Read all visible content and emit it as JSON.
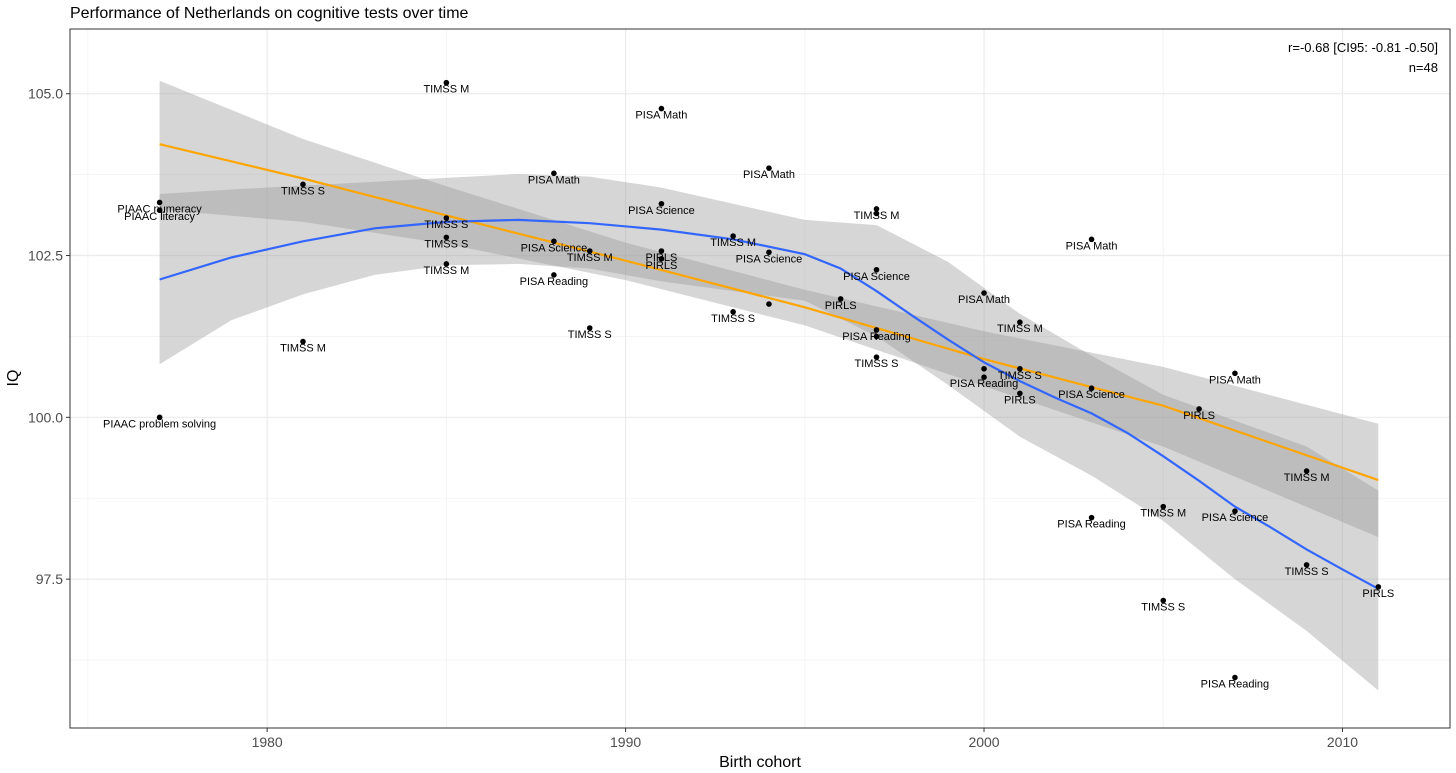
{
  "chart_data": {
    "type": "scatter",
    "title": "Performance of Netherlands on cognitive tests over time",
    "xlabel": "Birth cohort",
    "ylabel": "IQ",
    "xlim": [
      1974.5,
      2013
    ],
    "ylim": [
      95.2,
      106.0
    ],
    "x_ticks": [
      1980,
      1990,
      2000,
      2010
    ],
    "y_ticks": [
      97.5,
      100.0,
      102.5,
      105.0
    ],
    "y_tick_labels": [
      "97.5",
      "100.0",
      "102.5",
      "105.0"
    ],
    "grid": true,
    "annotations": [
      "r=-0.68 [CI95: -0.81 -0.50]",
      "n=48"
    ],
    "points": [
      {
        "x": 1977,
        "y": 103.32,
        "label": "PIAAC numeracy"
      },
      {
        "x": 1977,
        "y": 103.2,
        "label": "PIAAC literacy"
      },
      {
        "x": 1977,
        "y": 100.0,
        "label": "PIAAC problem solving"
      },
      {
        "x": 1981,
        "y": 103.6,
        "label": "TIMSS S"
      },
      {
        "x": 1981,
        "y": 101.17,
        "label": "TIMSS M"
      },
      {
        "x": 1985,
        "y": 105.17,
        "label": "TIMSS M"
      },
      {
        "x": 1985,
        "y": 103.08,
        "label": "TIMSS S"
      },
      {
        "x": 1985,
        "y": 102.78,
        "label": "TIMSS S"
      },
      {
        "x": 1985,
        "y": 102.37,
        "label": "TIMSS M"
      },
      {
        "x": 1988,
        "y": 103.77,
        "label": "PISA Math"
      },
      {
        "x": 1988,
        "y": 102.72,
        "label": "PISA Science"
      },
      {
        "x": 1988,
        "y": 102.2,
        "label": "PISA Reading"
      },
      {
        "x": 1989,
        "y": 102.57,
        "label": "TIMSS M"
      },
      {
        "x": 1989,
        "y": 101.38,
        "label": "TIMSS S"
      },
      {
        "x": 1991,
        "y": 104.77,
        "label": "PISA Math"
      },
      {
        "x": 1991,
        "y": 103.3,
        "label": "PISA Science"
      },
      {
        "x": 1991,
        "y": 102.57,
        "label": "PIRLS"
      },
      {
        "x": 1991,
        "y": 102.45,
        "label": "PIRLS"
      },
      {
        "x": 1993,
        "y": 102.8,
        "label": "TIMSS M"
      },
      {
        "x": 1993,
        "y": 101.63,
        "label": "TIMSS S"
      },
      {
        "x": 1994,
        "y": 103.85,
        "label": "PISA Math"
      },
      {
        "x": 1994,
        "y": 102.55,
        "label": "PISA Science"
      },
      {
        "x": 1994,
        "y": 101.75,
        "label": ""
      },
      {
        "x": 1996,
        "y": 101.83,
        "label": "PIRLS"
      },
      {
        "x": 1997,
        "y": 103.22,
        "label": "TIMSS M"
      },
      {
        "x": 1997,
        "y": 103.15,
        "label": ""
      },
      {
        "x": 1997,
        "y": 102.28,
        "label": "PISA Science"
      },
      {
        "x": 1997,
        "y": 101.35,
        "label": "PISA Reading"
      },
      {
        "x": 1997,
        "y": 101.25,
        "label": ""
      },
      {
        "x": 1997,
        "y": 100.93,
        "label": "TIMSS S"
      },
      {
        "x": 2000,
        "y": 101.92,
        "label": "PISA Math"
      },
      {
        "x": 2000,
        "y": 100.75,
        "label": ""
      },
      {
        "x": 2000,
        "y": 100.62,
        "label": "PISA Reading"
      },
      {
        "x": 2001,
        "y": 101.47,
        "label": "TIMSS M"
      },
      {
        "x": 2001,
        "y": 100.75,
        "label": "TIMSS S"
      },
      {
        "x": 2001,
        "y": 100.37,
        "label": "PIRLS"
      },
      {
        "x": 2003,
        "y": 102.75,
        "label": "PISA Math"
      },
      {
        "x": 2003,
        "y": 100.45,
        "label": "PISA Science"
      },
      {
        "x": 2003,
        "y": 98.45,
        "label": "PISA Reading"
      },
      {
        "x": 2005,
        "y": 98.62,
        "label": "TIMSS M"
      },
      {
        "x": 2005,
        "y": 97.17,
        "label": "TIMSS S"
      },
      {
        "x": 2006,
        "y": 100.13,
        "label": "PIRLS"
      },
      {
        "x": 2007,
        "y": 100.68,
        "label": "PISA Math"
      },
      {
        "x": 2007,
        "y": 98.55,
        "label": "PISA Science"
      },
      {
        "x": 2007,
        "y": 95.98,
        "label": "PISA Reading"
      },
      {
        "x": 2009,
        "y": 99.17,
        "label": "TIMSS M"
      },
      {
        "x": 2009,
        "y": 97.72,
        "label": "TIMSS S"
      },
      {
        "x": 2011,
        "y": 97.38,
        "label": "PIRLS"
      }
    ],
    "linear_fit": {
      "color": "#ffa500",
      "line": [
        [
          1977,
          104.22
        ],
        [
          1981,
          103.69
        ],
        [
          1985,
          103.12
        ],
        [
          1990,
          102.42
        ],
        [
          1995,
          101.7
        ],
        [
          2000,
          100.9
        ],
        [
          2005,
          100.18
        ],
        [
          2011,
          99.03
        ]
      ],
      "band_upper": [
        [
          1977,
          105.2
        ],
        [
          1981,
          104.3
        ],
        [
          1985,
          103.57
        ],
        [
          1990,
          102.7
        ],
        [
          1995,
          101.97
        ],
        [
          2000,
          101.33
        ],
        [
          2005,
          100.78
        ],
        [
          2011,
          99.9
        ]
      ],
      "band_lower": [
        [
          1977,
          103.21
        ],
        [
          1981,
          103.02
        ],
        [
          1985,
          102.68
        ],
        [
          1990,
          102.12
        ],
        [
          1995,
          101.42
        ],
        [
          2000,
          100.48
        ],
        [
          2005,
          99.55
        ],
        [
          2011,
          98.15
        ]
      ]
    },
    "loess_fit": {
      "color": "#3366ff",
      "line": [
        [
          1977,
          102.13
        ],
        [
          1979,
          102.47
        ],
        [
          1981,
          102.72
        ],
        [
          1983,
          102.92
        ],
        [
          1985,
          103.02
        ],
        [
          1987,
          103.05
        ],
        [
          1989,
          103.0
        ],
        [
          1991,
          102.9
        ],
        [
          1993,
          102.75
        ],
        [
          1995,
          102.52
        ],
        [
          1996,
          102.3
        ],
        [
          1997,
          101.95
        ],
        [
          1998,
          101.57
        ],
        [
          1999,
          101.2
        ],
        [
          2000,
          100.85
        ],
        [
          2001,
          100.56
        ],
        [
          2002,
          100.3
        ],
        [
          2003,
          100.06
        ],
        [
          2004,
          99.76
        ],
        [
          2005,
          99.4
        ],
        [
          2006,
          99.02
        ],
        [
          2007,
          98.62
        ],
        [
          2008,
          98.3
        ],
        [
          2009,
          97.96
        ],
        [
          2010,
          97.65
        ],
        [
          2011,
          97.35
        ]
      ],
      "band_upper": [
        [
          1977,
          103.45
        ],
        [
          1979,
          103.52
        ],
        [
          1981,
          103.58
        ],
        [
          1983,
          103.64
        ],
        [
          1985,
          103.7
        ],
        [
          1987,
          103.76
        ],
        [
          1989,
          103.72
        ],
        [
          1991,
          103.55
        ],
        [
          1993,
          103.3
        ],
        [
          1995,
          103.05
        ],
        [
          1997,
          102.97
        ],
        [
          1999,
          102.4
        ],
        [
          2000,
          102.0
        ],
        [
          2001,
          101.6
        ],
        [
          2003,
          100.95
        ],
        [
          2005,
          100.35
        ],
        [
          2007,
          99.95
        ],
        [
          2009,
          99.55
        ],
        [
          2011,
          98.87
        ]
      ],
      "band_lower": [
        [
          1977,
          100.82
        ],
        [
          1979,
          101.5
        ],
        [
          1981,
          101.9
        ],
        [
          1983,
          102.2
        ],
        [
          1985,
          102.35
        ],
        [
          1987,
          102.37
        ],
        [
          1989,
          102.3
        ],
        [
          1991,
          102.1
        ],
        [
          1993,
          101.95
        ],
        [
          1995,
          101.8
        ],
        [
          1997,
          101.25
        ],
        [
          1999,
          100.5
        ],
        [
          2000,
          100.1
        ],
        [
          2001,
          99.7
        ],
        [
          2003,
          99.1
        ],
        [
          2005,
          98.4
        ],
        [
          2007,
          97.5
        ],
        [
          2009,
          96.7
        ],
        [
          2011,
          95.78
        ]
      ]
    }
  }
}
